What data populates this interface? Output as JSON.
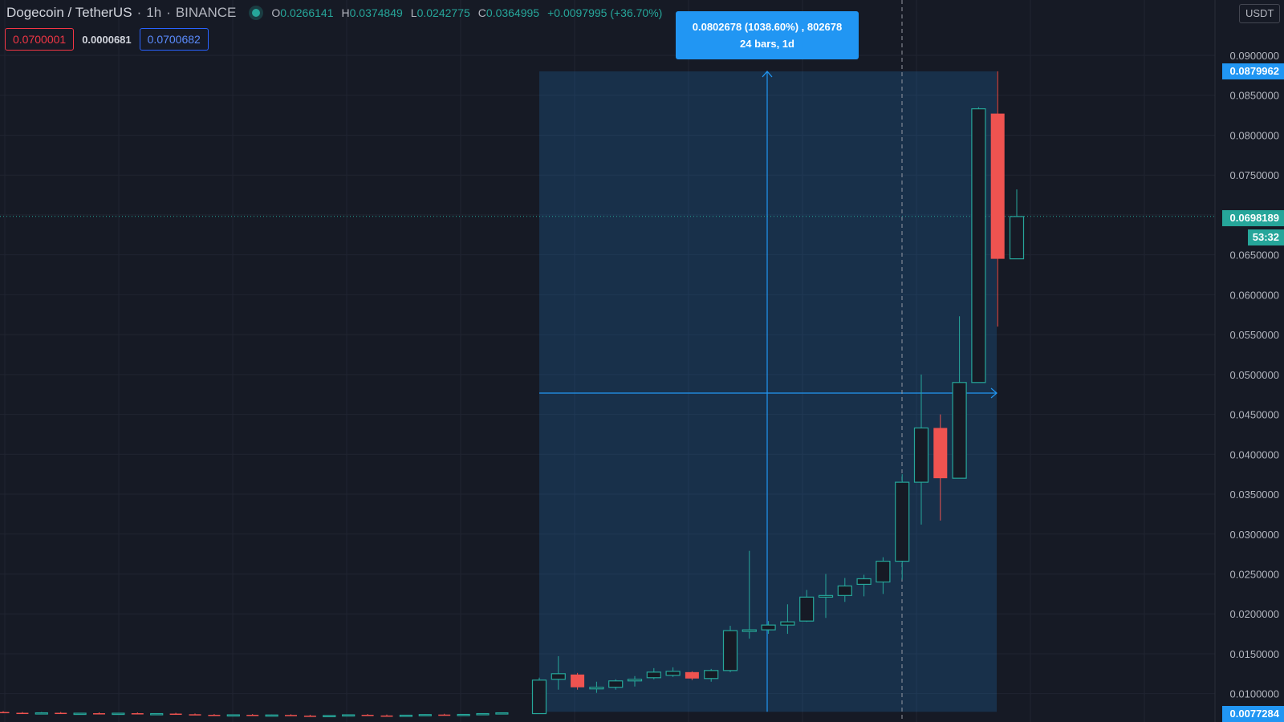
{
  "header": {
    "symbol": "Dogecoin / TetherUS",
    "interval": "1h",
    "exchange": "BINANCE",
    "ohlc": {
      "o_label": "O",
      "o": "0.0266141",
      "h_label": "H",
      "h": "0.0374849",
      "l_label": "L",
      "l": "0.0242775",
      "c_label": "C",
      "c": "0.0364995",
      "change": "+0.0097995 (+36.70%)"
    }
  },
  "trade_boxes": {
    "sell": "0.0700001",
    "spread": "0.0000681",
    "buy": "0.0700682"
  },
  "measure": {
    "line1": "0.0802678 (1038.60%) , 802678",
    "line2": "24 bars, 1d"
  },
  "currency_button": "USDT",
  "price_tags": {
    "top_measure": "0.0879962",
    "current": "0.0698189",
    "countdown": "53:32",
    "bottom_measure": "0.0077284"
  },
  "colors": {
    "up": "#26a69a",
    "down": "#ef5350",
    "measure": "#2196f3",
    "background": "#161a25"
  },
  "chart_data": {
    "type": "candlestick",
    "symbol": "Dogecoin / TetherUS",
    "interval": "1h",
    "ylim": [
      0.0078,
      0.092
    ],
    "y_ticks": [
      "0.0100000",
      "0.0150000",
      "0.0200000",
      "0.0250000",
      "0.0300000",
      "0.0350000",
      "0.0400000",
      "0.0450000",
      "0.0500000",
      "0.0550000",
      "0.0600000",
      "0.0650000",
      "0.0700000",
      "0.0750000",
      "0.0800000",
      "0.0850000",
      "0.0900000"
    ],
    "grid": true,
    "history_flat": [
      [
        0.0077,
        0.0078,
        0.0076,
        0.0076
      ],
      [
        0.0076,
        0.0077,
        0.0075,
        0.00755
      ],
      [
        0.00755,
        0.0077,
        0.0075,
        0.0076
      ],
      [
        0.0076,
        0.0077,
        0.0075,
        0.0075
      ],
      [
        0.0075,
        0.0076,
        0.00745,
        0.00755
      ],
      [
        0.00755,
        0.00765,
        0.00745,
        0.00748
      ],
      [
        0.00748,
        0.0076,
        0.0074,
        0.00755
      ],
      [
        0.00755,
        0.00765,
        0.00745,
        0.00745
      ],
      [
        0.00745,
        0.00755,
        0.00735,
        0.0075
      ],
      [
        0.0075,
        0.0076,
        0.0074,
        0.00742
      ],
      [
        0.00742,
        0.00752,
        0.0073,
        0.00735
      ],
      [
        0.00735,
        0.00745,
        0.00725,
        0.00728
      ],
      [
        0.00728,
        0.0074,
        0.0072,
        0.00735
      ],
      [
        0.00735,
        0.00745,
        0.00725,
        0.00726
      ],
      [
        0.00726,
        0.00738,
        0.00718,
        0.00733
      ],
      [
        0.00733,
        0.00742,
        0.00722,
        0.00724
      ],
      [
        0.00724,
        0.00735,
        0.00715,
        0.00718
      ],
      [
        0.00718,
        0.0073,
        0.00712,
        0.00726
      ],
      [
        0.00726,
        0.00738,
        0.00716,
        0.00735
      ],
      [
        0.00735,
        0.00745,
        0.00725,
        0.00726
      ],
      [
        0.00726,
        0.00738,
        0.00718,
        0.0072
      ],
      [
        0.0072,
        0.00732,
        0.00712,
        0.0073
      ],
      [
        0.0073,
        0.00742,
        0.00722,
        0.00738
      ],
      [
        0.00738,
        0.00748,
        0.00728,
        0.0073
      ],
      [
        0.0073,
        0.00742,
        0.00722,
        0.0074
      ],
      [
        0.0074,
        0.00752,
        0.00732,
        0.0075
      ],
      [
        0.0075,
        0.00765,
        0.00745,
        0.0076
      ]
    ],
    "candles": [
      [
        0.0075,
        0.012,
        0.0075,
        0.0117
      ],
      [
        0.0118,
        0.0147,
        0.0105,
        0.0125
      ],
      [
        0.0124,
        0.0126,
        0.0105,
        0.0108
      ],
      [
        0.0106,
        0.0115,
        0.0101,
        0.0108
      ],
      [
        0.0108,
        0.0118,
        0.0105,
        0.0116
      ],
      [
        0.0116,
        0.0122,
        0.0109,
        0.0118
      ],
      [
        0.012,
        0.0132,
        0.0118,
        0.0127
      ],
      [
        0.0123,
        0.0133,
        0.0121,
        0.0128
      ],
      [
        0.0127,
        0.0128,
        0.0117,
        0.0119
      ],
      [
        0.0119,
        0.0131,
        0.0115,
        0.0129
      ],
      [
        0.0129,
        0.0185,
        0.0127,
        0.0179
      ],
      [
        0.0178,
        0.0279,
        0.0169,
        0.018
      ],
      [
        0.018,
        0.0191,
        0.0175,
        0.0186
      ],
      [
        0.0186,
        0.0212,
        0.0175,
        0.019
      ],
      [
        0.0191,
        0.023,
        0.019,
        0.0221
      ],
      [
        0.0221,
        0.025,
        0.0195,
        0.0223
      ],
      [
        0.0223,
        0.0245,
        0.0215,
        0.0235
      ],
      [
        0.0237,
        0.0249,
        0.0222,
        0.0244
      ],
      [
        0.024,
        0.0271,
        0.0225,
        0.0266
      ],
      [
        0.0266,
        0.0375,
        0.0243,
        0.0365
      ],
      [
        0.0365,
        0.05,
        0.0312,
        0.0433
      ],
      [
        0.0433,
        0.045,
        0.0317,
        0.037
      ],
      [
        0.037,
        0.0573,
        0.037,
        0.049
      ],
      [
        0.049,
        0.0835,
        0.049,
        0.0833
      ],
      [
        0.0827,
        0.088,
        0.056,
        0.0645
      ],
      [
        0.0645,
        0.0732,
        0.0645,
        0.0698
      ]
    ],
    "annotations": {
      "measure_from": 0.0077284,
      "measure_to": 0.0879962,
      "current_price": 0.0698189
    }
  }
}
